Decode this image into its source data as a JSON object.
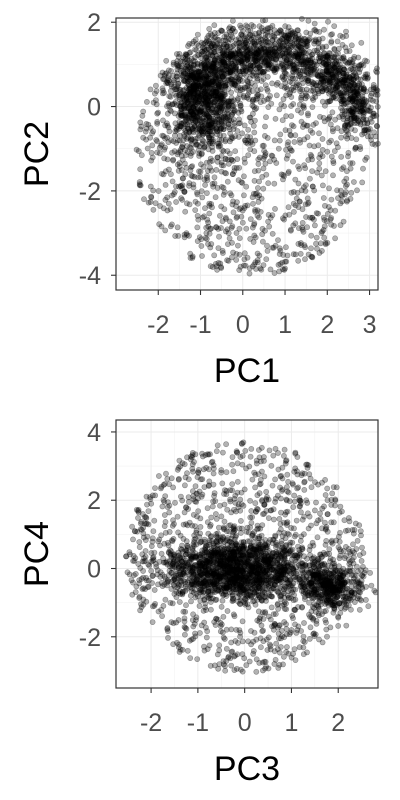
{
  "chart_data": [
    {
      "type": "scatter",
      "title": "",
      "xlabel": "PC1",
      "ylabel": "PC2",
      "xlim": [
        -3.0,
        3.2
      ],
      "ylim": [
        -4.35,
        2.1
      ],
      "xticks": [
        -2,
        -1,
        0,
        1,
        2,
        3
      ],
      "yticks": [
        -4,
        -2,
        0,
        2
      ],
      "grid": true,
      "point_color": "#000000",
      "point_alpha": 0.3,
      "n_points_approx": 3000,
      "clusters": [
        {
          "description": "dense upper arc",
          "x": [
            -1.5,
            -0.5,
            0.5,
            1.5,
            2.5,
            2.9
          ],
          "y": [
            0.3,
            1.1,
            1.3,
            1.2,
            0.6,
            -0.3
          ]
        },
        {
          "description": "dense left lobe",
          "center": [
            -0.9,
            0.0
          ]
        },
        {
          "description": "sparse lower interior",
          "x_range": [
            -2.5,
            2.8
          ],
          "y_range": [
            -4.0,
            -0.5
          ]
        }
      ]
    },
    {
      "type": "scatter",
      "title": "",
      "xlabel": "PC3",
      "ylabel": "PC4",
      "xlim": [
        -2.75,
        2.85
      ],
      "ylim": [
        -3.5,
        4.35
      ],
      "xticks": [
        -2,
        -1,
        0,
        1,
        2
      ],
      "yticks": [
        -2,
        0,
        2,
        4
      ],
      "grid": true,
      "point_color": "#000000",
      "point_alpha": 0.3,
      "n_points_approx": 3000,
      "clusters": [
        {
          "description": "dense central band",
          "center": [
            -0.2,
            0.0
          ]
        },
        {
          "description": "dense right blob",
          "center": [
            1.8,
            -0.5
          ]
        },
        {
          "description": "sparse outer halo",
          "x_range": [
            -2.6,
            2.6
          ],
          "y_range": [
            -3.2,
            4.0
          ]
        }
      ]
    }
  ]
}
